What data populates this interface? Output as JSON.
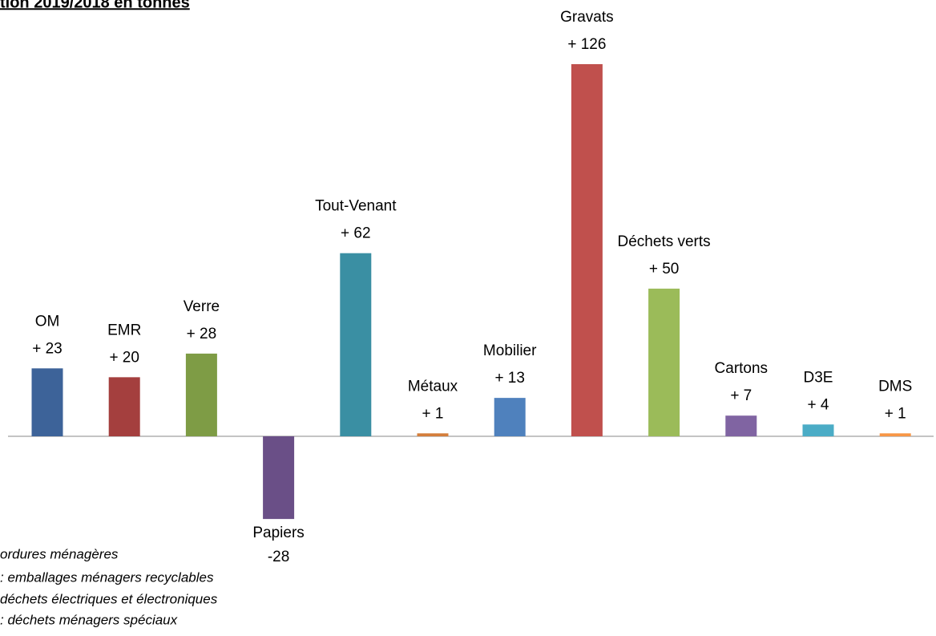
{
  "chart_data": {
    "type": "bar",
    "title": "tion 2019/2018  en tonnes",
    "categories": [
      "OM",
      "EMR",
      "Verre",
      "Papiers",
      "Tout-Venant",
      "Métaux",
      "Mobilier",
      "Gravats",
      "Déchets verts",
      "Cartons",
      "D3E",
      "DMS"
    ],
    "values": [
      23,
      20,
      28,
      -28,
      62,
      1,
      13,
      126,
      50,
      7,
      4,
      1
    ],
    "value_labels": [
      "+ 23",
      "+ 20",
      "+ 28",
      "-28",
      "+ 62",
      "+ 1",
      "+ 13",
      "+ 126",
      "+ 50",
      "+ 7",
      "+ 4",
      "+ 1"
    ],
    "colors": [
      "#3d6399",
      "#a43f3e",
      "#7e9c45",
      "#6a4f87",
      "#3a8fa3",
      "#d47e3b",
      "#4f81bd",
      "#c0504d",
      "#9bbb59",
      "#8064a2",
      "#4bacc6",
      "#f79646"
    ],
    "notes": [
      "ordures ménagères",
      ": emballages ménagers recyclables",
      "déchets électriques et électroniques",
      ": déchets ménagers spéciaux"
    ]
  }
}
